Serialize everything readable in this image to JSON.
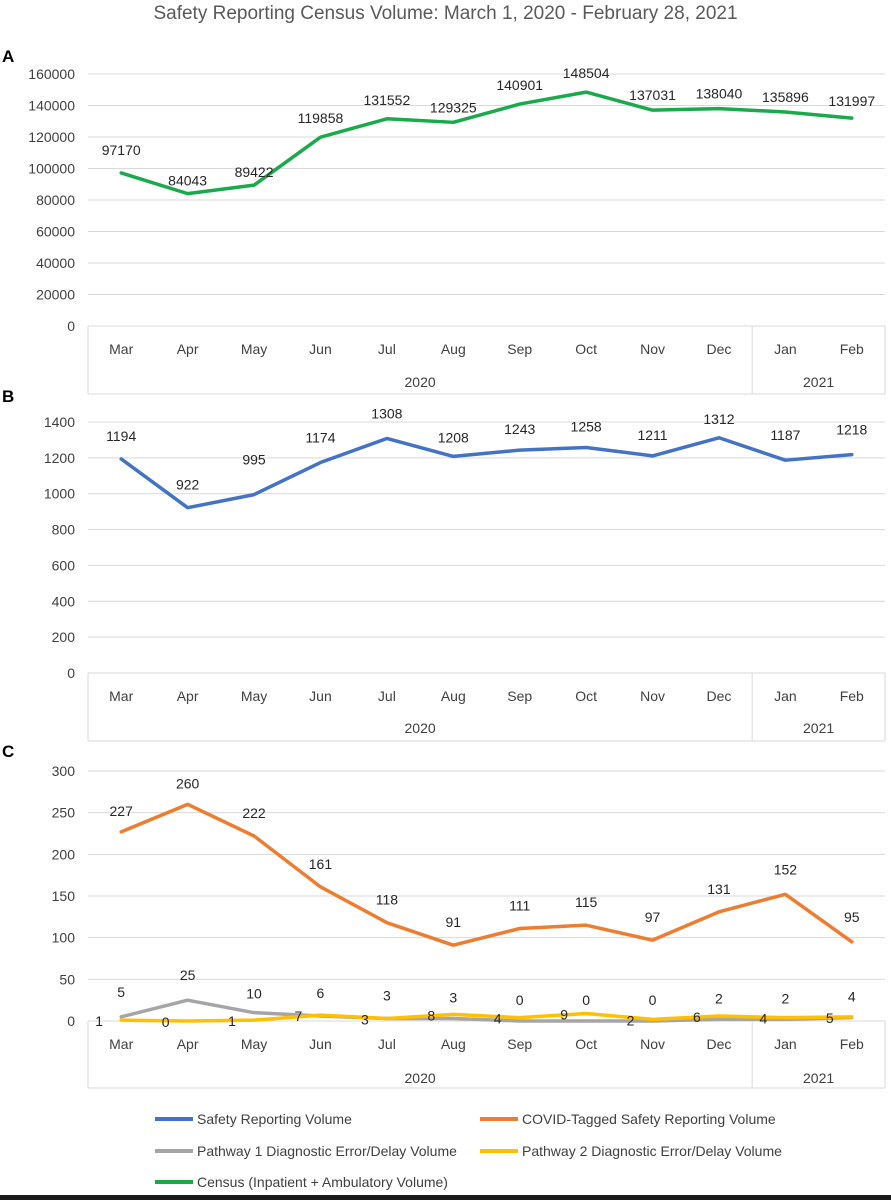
{
  "title": "Safety Reporting Census Volume: March 1, 2020 - February 28, 2021",
  "colors": {
    "safety": "#4472c4",
    "covid": "#ed7d31",
    "pathway1": "#a5a5a5",
    "pathway2": "#ffc000",
    "census": "#1aaa4b",
    "grid": "#d9d9d9",
    "axis_text": "#404040"
  },
  "legend": [
    {
      "key": "safety",
      "label": "Safety Reporting Volume"
    },
    {
      "key": "covid",
      "label": "COVID-Tagged Safety Reporting Volume"
    },
    {
      "key": "pathway1",
      "label": "Pathway 1 Diagnostic Error/Delay Volume"
    },
    {
      "key": "pathway2",
      "label": "Pathway 2 Diagnostic Error/Delay Volume"
    },
    {
      "key": "census",
      "label": "Census (Inpatient + Ambulatory Volume)"
    }
  ],
  "chart_data": [
    {
      "panel": "A",
      "type": "line",
      "categories": [
        "Mar",
        "Apr",
        "May",
        "Jun",
        "Jul",
        "Aug",
        "Sep",
        "Oct",
        "Nov",
        "Dec",
        "Jan",
        "Feb"
      ],
      "year_groups": [
        {
          "label": "2020",
          "count": 10
        },
        {
          "label": "2021",
          "count": 2
        }
      ],
      "ylim": [
        0,
        160000
      ],
      "yticks": [
        0,
        20000,
        40000,
        60000,
        80000,
        100000,
        120000,
        140000,
        160000
      ],
      "grid": true,
      "series": [
        {
          "name": "Census (Inpatient + Ambulatory Volume)",
          "key": "census",
          "values": [
            97170,
            84043,
            89422,
            119858,
            131552,
            129325,
            140901,
            148504,
            137031,
            138040,
            135896,
            131997
          ],
          "labels": [
            "97170",
            "84043",
            "89422",
            "119858",
            "131552",
            "129325",
            "140901",
            "148504",
            "137031",
            "138040",
            "135896",
            "131997"
          ]
        }
      ]
    },
    {
      "panel": "B",
      "type": "line",
      "categories": [
        "Mar",
        "Apr",
        "May",
        "Jun",
        "Jul",
        "Aug",
        "Sep",
        "Oct",
        "Nov",
        "Dec",
        "Jan",
        "Feb"
      ],
      "year_groups": [
        {
          "label": "2020",
          "count": 10
        },
        {
          "label": "2021",
          "count": 2
        }
      ],
      "ylim": [
        0,
        1400
      ],
      "yticks": [
        0,
        200,
        400,
        600,
        800,
        1000,
        1200,
        1400
      ],
      "grid": true,
      "series": [
        {
          "name": "Safety Reporting Volume",
          "key": "safety",
          "values": [
            1194,
            922,
            995,
            1174,
            1308,
            1208,
            1243,
            1258,
            1211,
            1312,
            1187,
            1218
          ],
          "labels": [
            "1194",
            "922",
            "995",
            "1174",
            "1308",
            "1208",
            "1243",
            "1258",
            "1211",
            "1312",
            "1187",
            "1218"
          ]
        }
      ]
    },
    {
      "panel": "C",
      "type": "line",
      "categories": [
        "Mar",
        "Apr",
        "May",
        "Jun",
        "Jul",
        "Aug",
        "Sep",
        "Oct",
        "Nov",
        "Dec",
        "Jan",
        "Feb"
      ],
      "year_groups": [
        {
          "label": "2020",
          "count": 10
        },
        {
          "label": "2021",
          "count": 2
        }
      ],
      "ylim": [
        0,
        300
      ],
      "yticks": [
        0,
        50,
        100,
        150,
        200,
        250,
        300
      ],
      "grid": true,
      "series": [
        {
          "name": "COVID-Tagged Safety Reporting Volume",
          "key": "covid",
          "values": [
            227,
            260,
            222,
            161,
            118,
            91,
            111,
            115,
            97,
            131,
            152,
            95
          ],
          "labels": [
            "227",
            "260",
            "222",
            "161",
            "118",
            "91",
            "111",
            "115",
            "97",
            "131",
            "152",
            "95"
          ]
        },
        {
          "name": "Pathway 1 Diagnostic Error/Delay Volume",
          "key": "pathway1",
          "values": [
            5,
            25,
            10,
            6,
            3,
            3,
            0,
            0,
            0,
            2,
            2,
            4
          ],
          "labels": [
            "5",
            "25",
            "10",
            "6",
            "3",
            "3",
            "0",
            "0",
            "0",
            "2",
            "2",
            "4"
          ]
        },
        {
          "name": "Pathway 2 Diagnostic Error/Delay Volume",
          "key": "pathway2",
          "values": [
            1,
            0,
            1,
            7,
            3,
            8,
            4,
            9,
            2,
            6,
            4,
            5
          ],
          "labels": [
            "1",
            "0",
            "1",
            "7",
            "3",
            "8",
            "4",
            "9",
            "2",
            "6",
            "4",
            "5"
          ]
        }
      ]
    }
  ]
}
